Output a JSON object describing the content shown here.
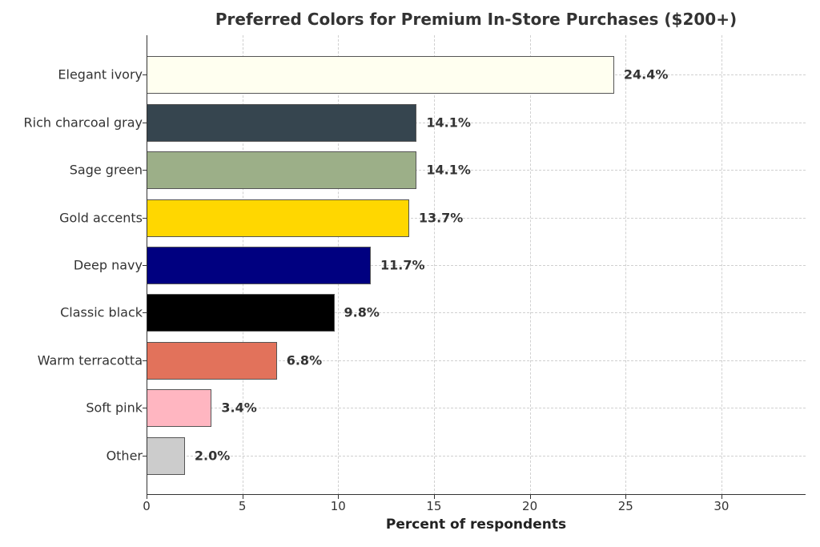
{
  "chart_data": {
    "type": "bar",
    "orientation": "horizontal",
    "title": "Preferred Colors for Premium In-Store Purchases ($200+)",
    "xlabel": "Percent of respondents",
    "ylabel": "",
    "xlim": [
      0,
      34.4
    ],
    "xticks": [
      0,
      5,
      10,
      15,
      20,
      25,
      30
    ],
    "grid": true,
    "legend": null,
    "categories": [
      "Elegant ivory",
      "Rich charcoal gray",
      "Sage green",
      "Gold accents",
      "Deep navy",
      "Classic black",
      "Warm terracotta",
      "Soft pink",
      "Other"
    ],
    "values": [
      24.4,
      14.1,
      14.1,
      13.7,
      11.7,
      9.8,
      6.8,
      3.4,
      2.0
    ],
    "value_labels": [
      "24.4%",
      "14.1%",
      "14.1%",
      "13.7%",
      "11.7%",
      "9.8%",
      "6.8%",
      "3.4%",
      "2.0%"
    ],
    "colors": [
      "#FFFFF0",
      "#36454F",
      "#9CAF88",
      "#FFD700",
      "#000080",
      "#000000",
      "#E2725B",
      "#FFB6C1",
      "#CCCCCC"
    ]
  }
}
